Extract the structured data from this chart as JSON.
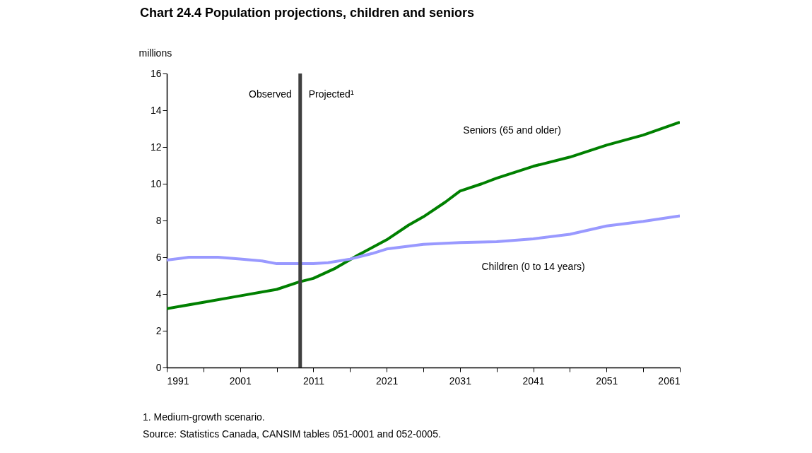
{
  "chart_data": {
    "type": "line",
    "title": "Chart 24.4 Population projections, children and seniors",
    "ylabel": "millions",
    "xlim": [
      1991,
      2061
    ],
    "ylim": [
      0,
      16
    ],
    "xticks": [
      1991,
      {
        "value": 1996,
        "label": null
      },
      2001,
      {
        "value": 2006,
        "label": null
      },
      2011,
      {
        "value": 2016,
        "label": null
      },
      2021,
      {
        "value": 2026,
        "label": null
      },
      2031,
      {
        "value": 2036,
        "label": null
      },
      2041,
      {
        "value": 2046,
        "label": null
      },
      2051,
      {
        "value": 2056,
        "label": null
      },
      2061
    ],
    "yticks": [
      0,
      2,
      4,
      6,
      8,
      10,
      12,
      14,
      16
    ],
    "grid": false,
    "legend": false,
    "marker": "none",
    "line_style": "solid",
    "series": [
      {
        "name": "Seniors (65 and older)",
        "color": "#008000",
        "x": [
          1991,
          1996,
          2001,
          2006,
          2009,
          2011,
          2014,
          2017,
          2021,
          2024,
          2026,
          2029,
          2031,
          2034,
          2036,
          2041,
          2046,
          2051,
          2056,
          2061
        ],
        "values": [
          3.2,
          3.55,
          3.9,
          4.25,
          4.65,
          4.85,
          5.4,
          6.1,
          6.95,
          7.75,
          8.2,
          9.0,
          9.6,
          10.0,
          10.3,
          10.95,
          11.45,
          12.1,
          12.65,
          13.35
        ]
      },
      {
        "name": "Children (0 to 14 years)",
        "color": "#9999ff",
        "x": [
          1991,
          1994,
          1998,
          2001,
          2004,
          2006,
          2009,
          2011,
          2013,
          2016,
          2019,
          2021,
          2026,
          2031,
          2036,
          2041,
          2046,
          2051,
          2056,
          2061
        ],
        "values": [
          5.85,
          6.0,
          6.0,
          5.9,
          5.8,
          5.65,
          5.65,
          5.65,
          5.7,
          5.9,
          6.2,
          6.45,
          6.7,
          6.8,
          6.85,
          7.0,
          7.25,
          7.7,
          7.95,
          8.25
        ]
      }
    ],
    "ref_lines": [
      {
        "axis": "x",
        "value": 2009.2,
        "color": "#404040"
      }
    ],
    "annotations": [
      "Observed",
      "Projected¹",
      "1. Medium-growth scenario.",
      "Source: Statistics Canada, CANSIM tables 051-0001 and 052-0005."
    ]
  }
}
